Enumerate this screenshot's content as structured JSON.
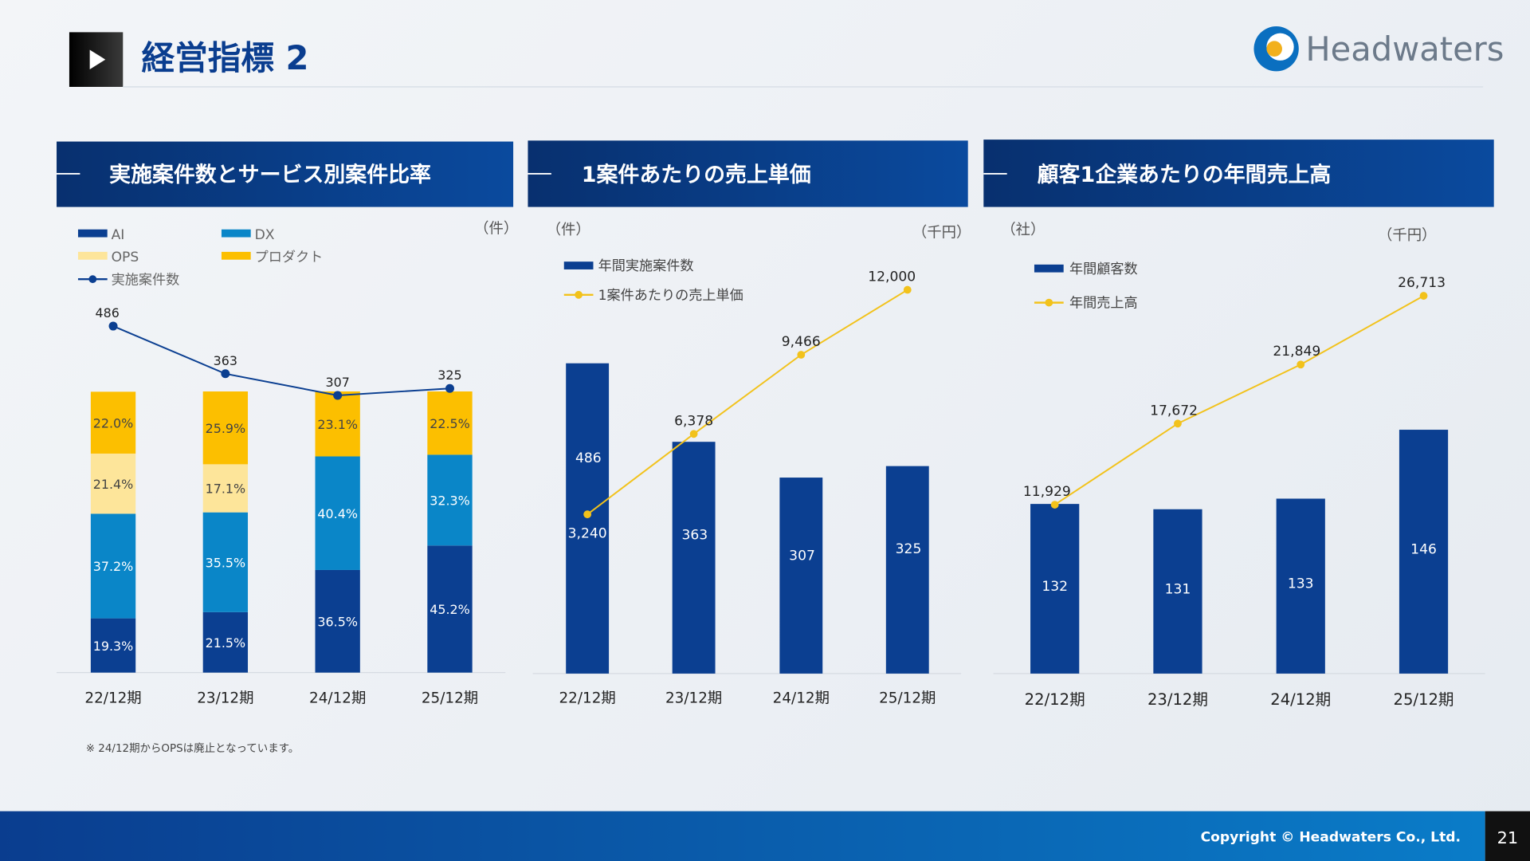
{
  "header": {
    "title": "経営指標 2",
    "logo_text": "Headwaters"
  },
  "footer": {
    "copyright": "Copyright © Headwaters Co., Ltd.",
    "page_number": "21"
  },
  "colors": {
    "navy": "#0a3d8f",
    "ai": "#0b3f91",
    "dx": "#0a86c8",
    "ops": "#fde59a",
    "product": "#fcbf00",
    "line_yellow": "#f2c21b",
    "header_bar": "#0a3f8f"
  },
  "panels": [
    {
      "title": "実施案件数とサービス別案件比率",
      "units": [
        "（件）"
      ],
      "note": "※ 24/12期からOPSは廃止となっています。"
    },
    {
      "title": "1案件あたりの売上単価",
      "units": [
        "（件）",
        "（千円）"
      ]
    },
    {
      "title": "顧客1企業あたりの年間売上高",
      "units": [
        "（社）",
        "（千円）"
      ]
    }
  ],
  "chart_data": [
    {
      "type": "bar",
      "stacked": true,
      "categories": [
        "22/12期",
        "23/12期",
        "24/12期",
        "25/12期"
      ],
      "series": [
        {
          "name": "AI",
          "values": [
            19.3,
            21.5,
            36.5,
            45.2
          ],
          "labels": [
            "19.3%",
            "21.5%",
            "36.5%",
            "45.2%"
          ],
          "color": "#0b3f91"
        },
        {
          "name": "DX",
          "values": [
            37.2,
            35.5,
            40.4,
            32.3
          ],
          "labels": [
            "37.2%",
            "35.5%",
            "40.4%",
            "32.3%"
          ],
          "color": "#0a86c8"
        },
        {
          "name": "OPS",
          "values": [
            21.4,
            17.1,
            0,
            0
          ],
          "labels": [
            "21.4%",
            "17.1%",
            "",
            ""
          ],
          "color": "#fde59a"
        },
        {
          "name": "プロダクト",
          "values": [
            22.0,
            25.9,
            23.1,
            22.5
          ],
          "labels": [
            "22.0%",
            "25.9%",
            "23.1%",
            "22.5%"
          ],
          "color": "#fcbf00"
        }
      ],
      "line": {
        "name": "実施案件数",
        "values": [
          486,
          363,
          307,
          325
        ],
        "labels": [
          "486",
          "363",
          "307",
          "325"
        ],
        "color": "#0b3f91"
      }
    },
    {
      "type": "bar",
      "categories": [
        "22/12期",
        "23/12期",
        "24/12期",
        "25/12期"
      ],
      "series": [
        {
          "name": "年間実施案件数",
          "values": [
            486,
            363,
            307,
            325
          ],
          "labels": [
            "486",
            "363",
            "307",
            "325"
          ],
          "color": "#0b3f91"
        }
      ],
      "line": {
        "name": "1案件あたりの売上単価",
        "values": [
          3240,
          6378,
          9466,
          12000
        ],
        "labels": [
          "3,240",
          "6,378",
          "9,466",
          "12,000"
        ],
        "color": "#f2c21b"
      }
    },
    {
      "type": "bar",
      "categories": [
        "22/12期",
        "23/12期",
        "24/12期",
        "25/12期"
      ],
      "series": [
        {
          "name": "年間顧客数",
          "values": [
            132,
            131,
            133,
            146
          ],
          "labels": [
            "132",
            "131",
            "133",
            "146"
          ],
          "color": "#0b3f91"
        }
      ],
      "line": {
        "name": "年間売上高",
        "values": [
          11929,
          17672,
          21849,
          26713
        ],
        "labels": [
          "11,929",
          "17,672",
          "21,849",
          "26,713"
        ],
        "color": "#f2c21b"
      }
    }
  ]
}
